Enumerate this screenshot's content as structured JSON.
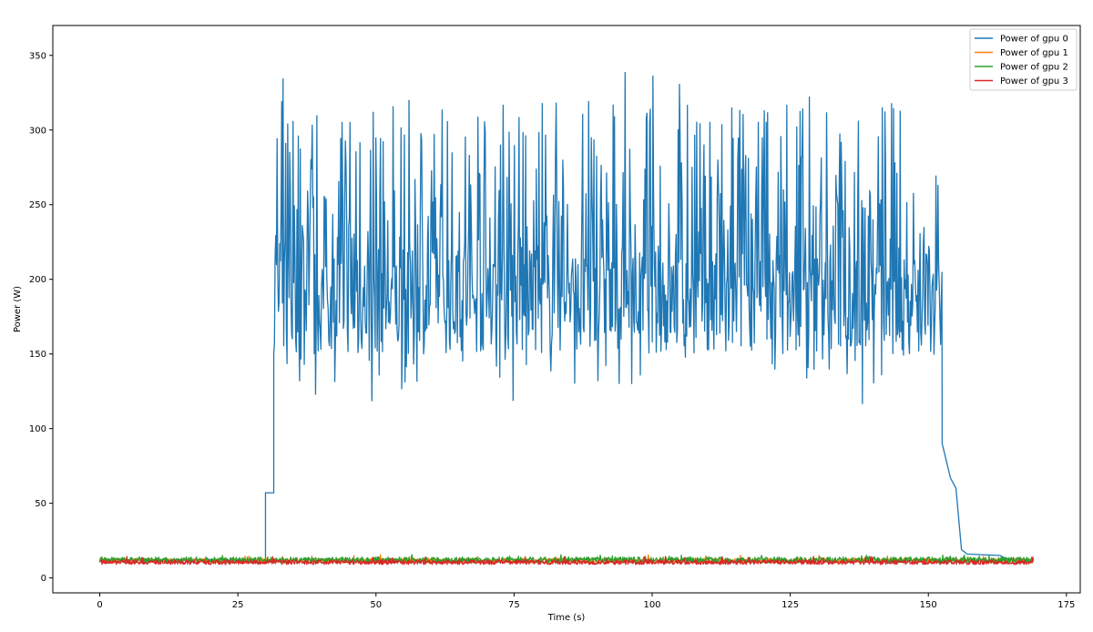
{
  "chart_data": {
    "type": "line",
    "title": "",
    "xlabel": "Time (s)",
    "ylabel": "Power (W)",
    "xlim": [
      -8.5,
      177.5
    ],
    "ylim": [
      -10,
      370
    ],
    "xticks": [
      0,
      25,
      50,
      75,
      100,
      125,
      150,
      175
    ],
    "yticks": [
      0,
      50,
      100,
      150,
      200,
      250,
      300,
      350
    ],
    "grid": false,
    "legend_position": "top-right",
    "series": [
      {
        "name": "Power of gpu 0",
        "color": "#1f77b4",
        "profile": {
          "idle_until": 30,
          "idle_value": 12,
          "step_value": 57,
          "active_start": 31.5,
          "active_end": 152.5,
          "active_mean": 190,
          "active_min": 103,
          "active_max": 353,
          "rampdown": [
            [
              152.5,
              90
            ],
            [
              154,
              67
            ],
            [
              155,
              60
            ],
            [
              156,
              19
            ],
            [
              157,
              16
            ],
            [
              163,
              15
            ],
            [
              164,
              13
            ],
            [
              169,
              12
            ]
          ]
        }
      },
      {
        "name": "Power of gpu 1",
        "color": "#ff7f0e",
        "profile": {
          "x_end": 169,
          "mean": 11.5,
          "noise": 1.5
        }
      },
      {
        "name": "Power of gpu 2",
        "color": "#2ca02c",
        "profile": {
          "x_end": 169,
          "mean": 12,
          "noise": 2
        }
      },
      {
        "name": "Power of gpu 3",
        "color": "#d62728",
        "profile": {
          "x_end": 169,
          "mean": 10.5,
          "noise": 1.5
        }
      }
    ]
  }
}
